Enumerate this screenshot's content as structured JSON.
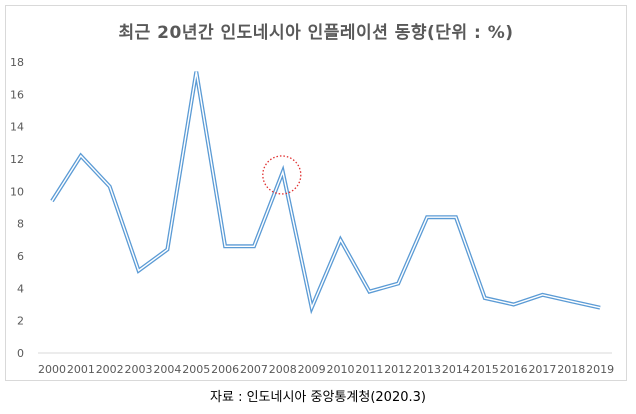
{
  "chart_data": {
    "type": "line",
    "title": "최근 20년간 인도네시아 인플레이션 동향(단위 : %)",
    "categories": [
      "2000",
      "2001",
      "2002",
      "2003",
      "2004",
      "2005",
      "2006",
      "2007",
      "2008",
      "2009",
      "2010",
      "2011",
      "2012",
      "2013",
      "2014",
      "2015",
      "2016",
      "2017",
      "2018",
      "2019"
    ],
    "series": [
      {
        "values": [
          9.4,
          12.2,
          10.3,
          5.1,
          6.4,
          17.4,
          6.6,
          6.6,
          11.2,
          2.8,
          7.0,
          3.8,
          4.3,
          8.4,
          8.4,
          3.4,
          3.0,
          3.6,
          3.2,
          2.8
        ]
      }
    ],
    "yticks": [
      0,
      2,
      4,
      6,
      8,
      10,
      12,
      14,
      16,
      18
    ],
    "ylim": [
      0,
      18
    ],
    "grid": false,
    "highlight_category": "2008",
    "colors": {
      "line": "#5b9bd5",
      "highlight": "#e03030",
      "tick_text": "#595959",
      "axis": "#d9d9d9"
    }
  },
  "caption": "자료 : 인도네시아 중앙통계청(2020.3)"
}
